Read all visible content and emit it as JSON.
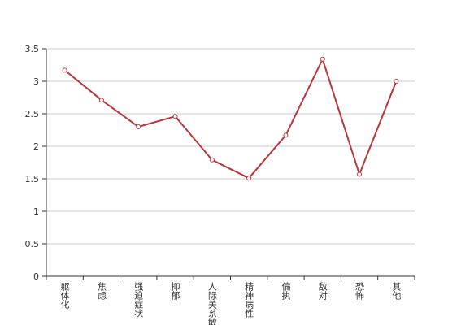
{
  "chart_data": {
    "type": "line",
    "categories": [
      "躯体化",
      "焦虑",
      "强迫症状",
      "抑郁",
      "人际关系敏感",
      "精神病性",
      "偏执",
      "敌对",
      "恐怖",
      "其他"
    ],
    "series": [
      {
        "color": "#b8373a",
        "values": [
          3.17,
          2.71,
          2.3,
          2.46,
          1.79,
          1.51,
          2.17,
          3.34,
          1.57,
          3.0
        ]
      }
    ],
    "ylim": [
      0,
      3.5
    ],
    "yticks": [
      0,
      0.5,
      1,
      1.5,
      2,
      2.5,
      3,
      3.5
    ],
    "grid": true
  }
}
